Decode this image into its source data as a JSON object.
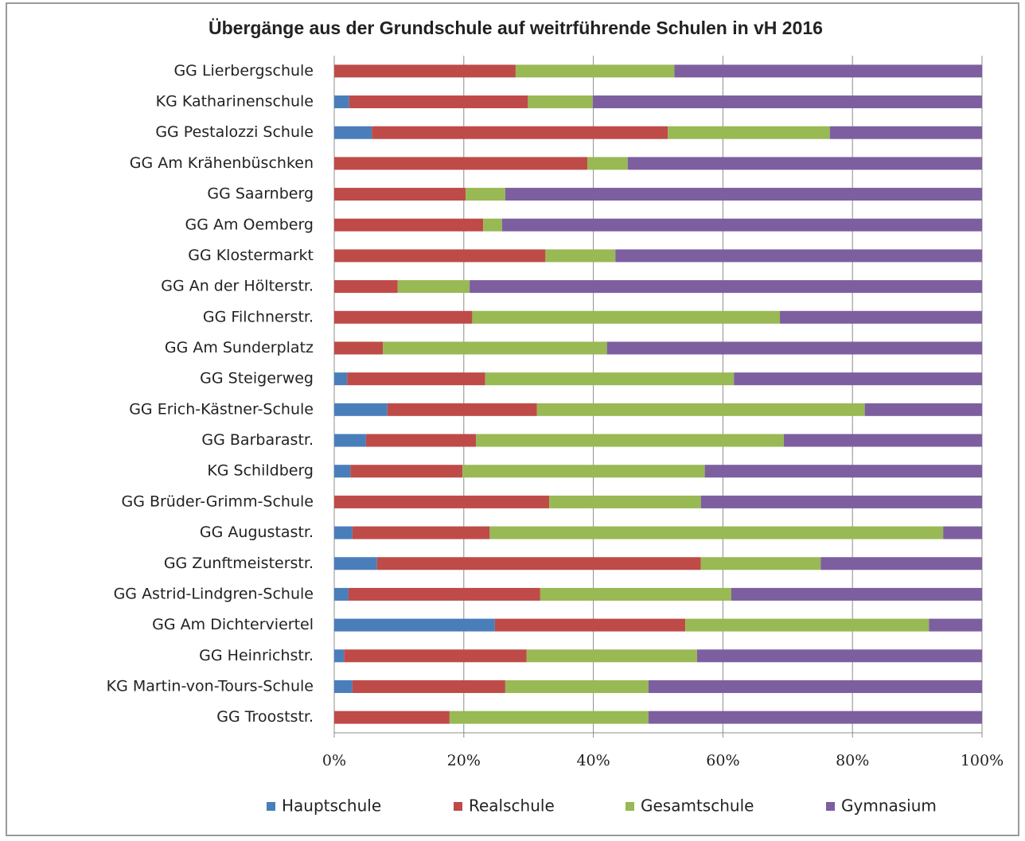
{
  "chart_data": {
    "type": "stacked-barh",
    "title": "Übergänge aus der Grundschule auf weitrführende Schulen in vH 2016",
    "categories": [
      "GG Lierbergschule",
      "KG Katharinenschule",
      "GG Pestalozzi Schule",
      "GG Am Krähenbüschken",
      "GG Saarnberg",
      "GG Am Oemberg",
      "GG Klostermarkt",
      "GG An der Hölterstr.",
      "GG Filchnerstr.",
      "GG Am Sunderplatz",
      "GG Steigerweg",
      "GG Erich-Kästner-Schule",
      "GG Barbarastr.",
      "KG Schildberg",
      "GG Brüder-Grimm-Schule",
      "GG Augustastr.",
      "GG Zunftmeisterstr.",
      "GG Astrid-Lindgren-Schule",
      "GG Am Dichterviertel",
      "GG Heinrichstr.",
      "KG Martin-von-Tours-Schule",
      "GG Trooststr."
    ],
    "series": [
      {
        "name": "Hauptschule",
        "color": "#4a7ebb",
        "values": [
          0,
          2.3,
          5.8,
          0,
          0,
          0,
          0,
          0,
          0,
          0,
          2,
          8.2,
          4.9,
          2.5,
          0,
          2.8,
          6.6,
          2.2,
          24.8,
          1.5,
          2.8,
          0
        ]
      },
      {
        "name": "Realschule",
        "color": "#be4b48",
        "values": [
          28,
          27.6,
          45.7,
          39.1,
          20.3,
          23,
          32.6,
          9.8,
          21.3,
          7.5,
          21.3,
          23.1,
          17,
          17.3,
          33.2,
          21.2,
          50,
          29.6,
          29.4,
          28.2,
          23.6,
          17.8
        ]
      },
      {
        "name": "Gesamtschule",
        "color": "#98b954",
        "values": [
          24.5,
          10,
          25,
          6.2,
          6.1,
          2.9,
          10.8,
          11.1,
          47.5,
          34.6,
          38.4,
          50.6,
          47.5,
          37.4,
          23.4,
          70,
          18.5,
          29.5,
          37.6,
          26.3,
          22.1,
          30.7
        ]
      },
      {
        "name": "Gymnasium",
        "color": "#7d5fa0",
        "values": [
          47.5,
          60.1,
          23.5,
          54.7,
          73.6,
          74.1,
          56.6,
          79.1,
          31.2,
          57.9,
          38.3,
          18.1,
          30.6,
          42.8,
          43.4,
          6,
          24.9,
          38.7,
          8.2,
          44,
          51.5,
          51.5
        ]
      }
    ],
    "xlim": [
      0,
      100
    ],
    "xticks": [
      {
        "value": 0,
        "label": "0%"
      },
      {
        "value": 20,
        "label": "20%"
      },
      {
        "value": 40,
        "label": "40%"
      },
      {
        "value": 60,
        "label": "60%"
      },
      {
        "value": 80,
        "label": "80%"
      },
      {
        "value": 100,
        "label": "100%"
      }
    ],
    "grid": true,
    "legend": "bottom"
  }
}
